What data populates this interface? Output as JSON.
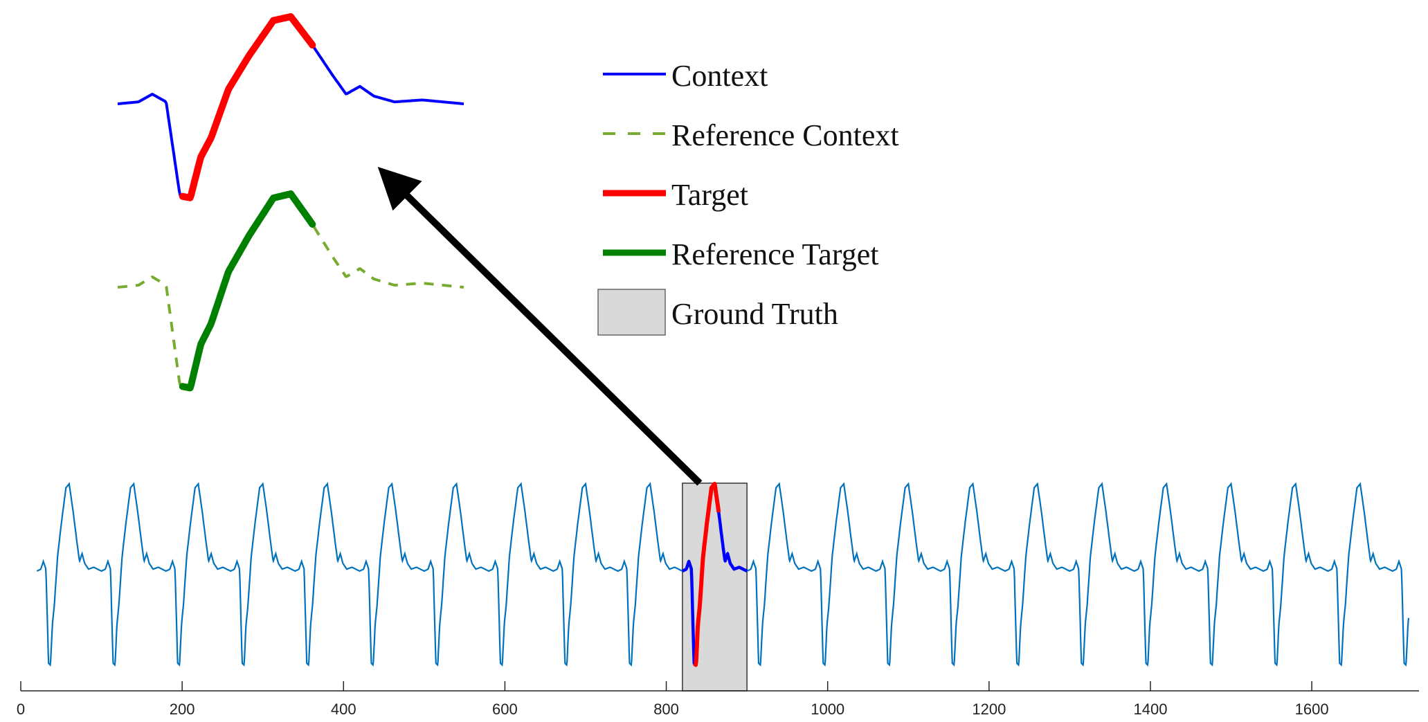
{
  "chart_data": {
    "type": "line",
    "title": "",
    "xlabel": "",
    "ylabel": "",
    "xlim": [
      0,
      1720
    ],
    "xticks": [
      0,
      200,
      400,
      600,
      800,
      1000,
      1200,
      1400,
      1600
    ],
    "grid": false,
    "beat_period": 80,
    "signal_start": 20,
    "signal_end": 1720,
    "ground_truth_x": [
      820,
      900
    ],
    "context_x": [
      820,
      835,
      865,
      900
    ],
    "target_x": [
      835,
      865
    ],
    "legend": {
      "position": "top-right",
      "entries": [
        {
          "label": "Context",
          "color": "#0000ff",
          "style": "solid"
        },
        {
          "label": "Reference Context",
          "color": "#77ac30",
          "style": "dashed"
        },
        {
          "label": "Target",
          "color": "#ff0000",
          "style": "solid-thick"
        },
        {
          "label": "Reference Target",
          "color": "#008000",
          "style": "solid-thick"
        },
        {
          "label": "Ground Truth",
          "color": "#d9d9d9",
          "style": "patch"
        }
      ]
    },
    "annotations": [
      "arrow from ground truth window to zoomed-in detail"
    ],
    "colors": {
      "signal": "#0072bd",
      "context": "#0000ff",
      "target": "#ff0000",
      "reference_context": "#77ac30",
      "reference_target": "#008000",
      "ground_truth": "#d9d9d9",
      "arrow": "#000000"
    }
  }
}
